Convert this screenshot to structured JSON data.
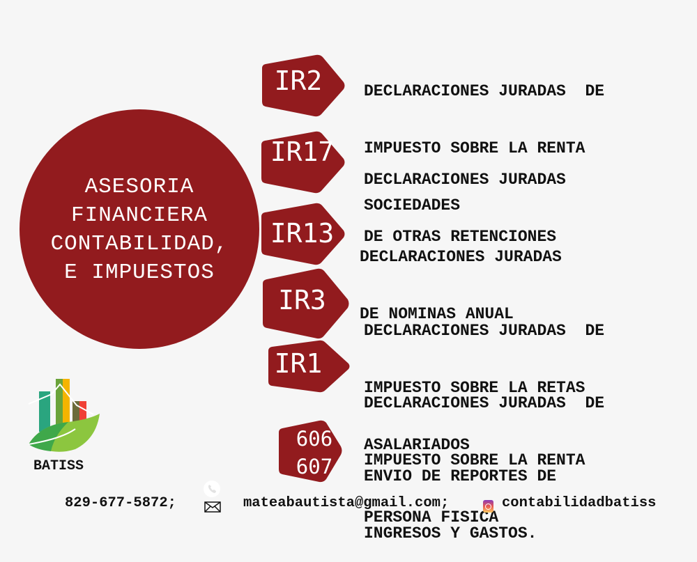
{
  "center": {
    "lines": [
      "ASESORIA",
      "FINANCIERA",
      "CONTABILIDAD,",
      "E IMPUESTOS"
    ]
  },
  "items": [
    {
      "code": [
        "IR2"
      ],
      "description": [
        "DECLARACIONES JURADAS  DE",
        "IMPUESTO SOBRE LA RENTA",
        "SOCIEDADES"
      ]
    },
    {
      "code": [
        "IR17"
      ],
      "description": [
        "DECLARACIONES JURADAS",
        "DE OTRAS RETENCIONES"
      ]
    },
    {
      "code": [
        "IR13"
      ],
      "description": [
        "DECLARACIONES JURADAS",
        "DE NOMINAS ANUAL"
      ]
    },
    {
      "code": [
        "IR3"
      ],
      "description": [
        "DECLARACIONES JURADAS  DE",
        "IMPUESTO SOBRE LA RETAS",
        "ASALARIADOS"
      ]
    },
    {
      "code": [
        "IR1"
      ],
      "description": [
        "DECLARACIONES JURADAS  DE",
        "IMPUESTO SOBRE LA RENTA",
        "PERSONA FISICA"
      ]
    },
    {
      "code": [
        "606",
        "607"
      ],
      "description": [
        "ENVIO DE REPORTES DE",
        "INGRESOS Y GASTOS."
      ]
    }
  ],
  "logo": {
    "text": "BATISS"
  },
  "footer": {
    "phone": "829-677-5872;",
    "email": "mateabautista@gmail.com;",
    "instagram": "contabilidadbatiss",
    "icons": [
      "phone-icon",
      "mail-icon",
      "instagram-icon"
    ]
  },
  "colors": {
    "brand_red": "#921b1e",
    "background": "#f6f6f6"
  }
}
